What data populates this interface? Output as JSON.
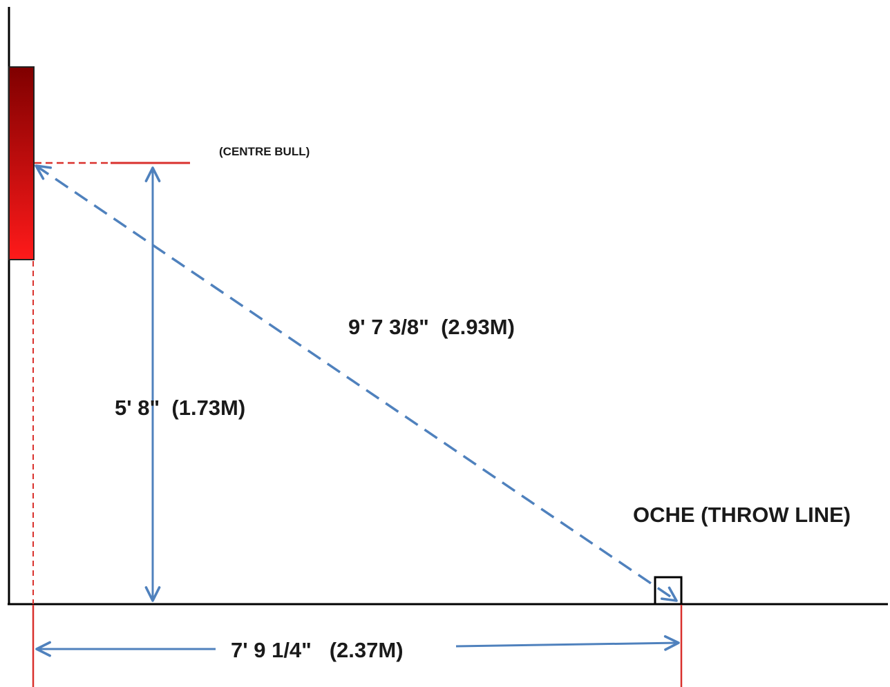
{
  "labels": {
    "centre_bull": "(CENTRE BULL)",
    "diagonal": "9' 7 3/8\"  (2.93M)",
    "height": "5' 8\"  (1.73M)",
    "oche": "OCHE (THROW LINE)",
    "horizontal": "7' 9 1/4\"   (2.37M)"
  },
  "colors": {
    "arrow": "#4f81bd",
    "red_line": "#d9302c",
    "board_dark": "#7f0000",
    "board_light": "#ff1a1a",
    "axis": "#000000"
  }
}
